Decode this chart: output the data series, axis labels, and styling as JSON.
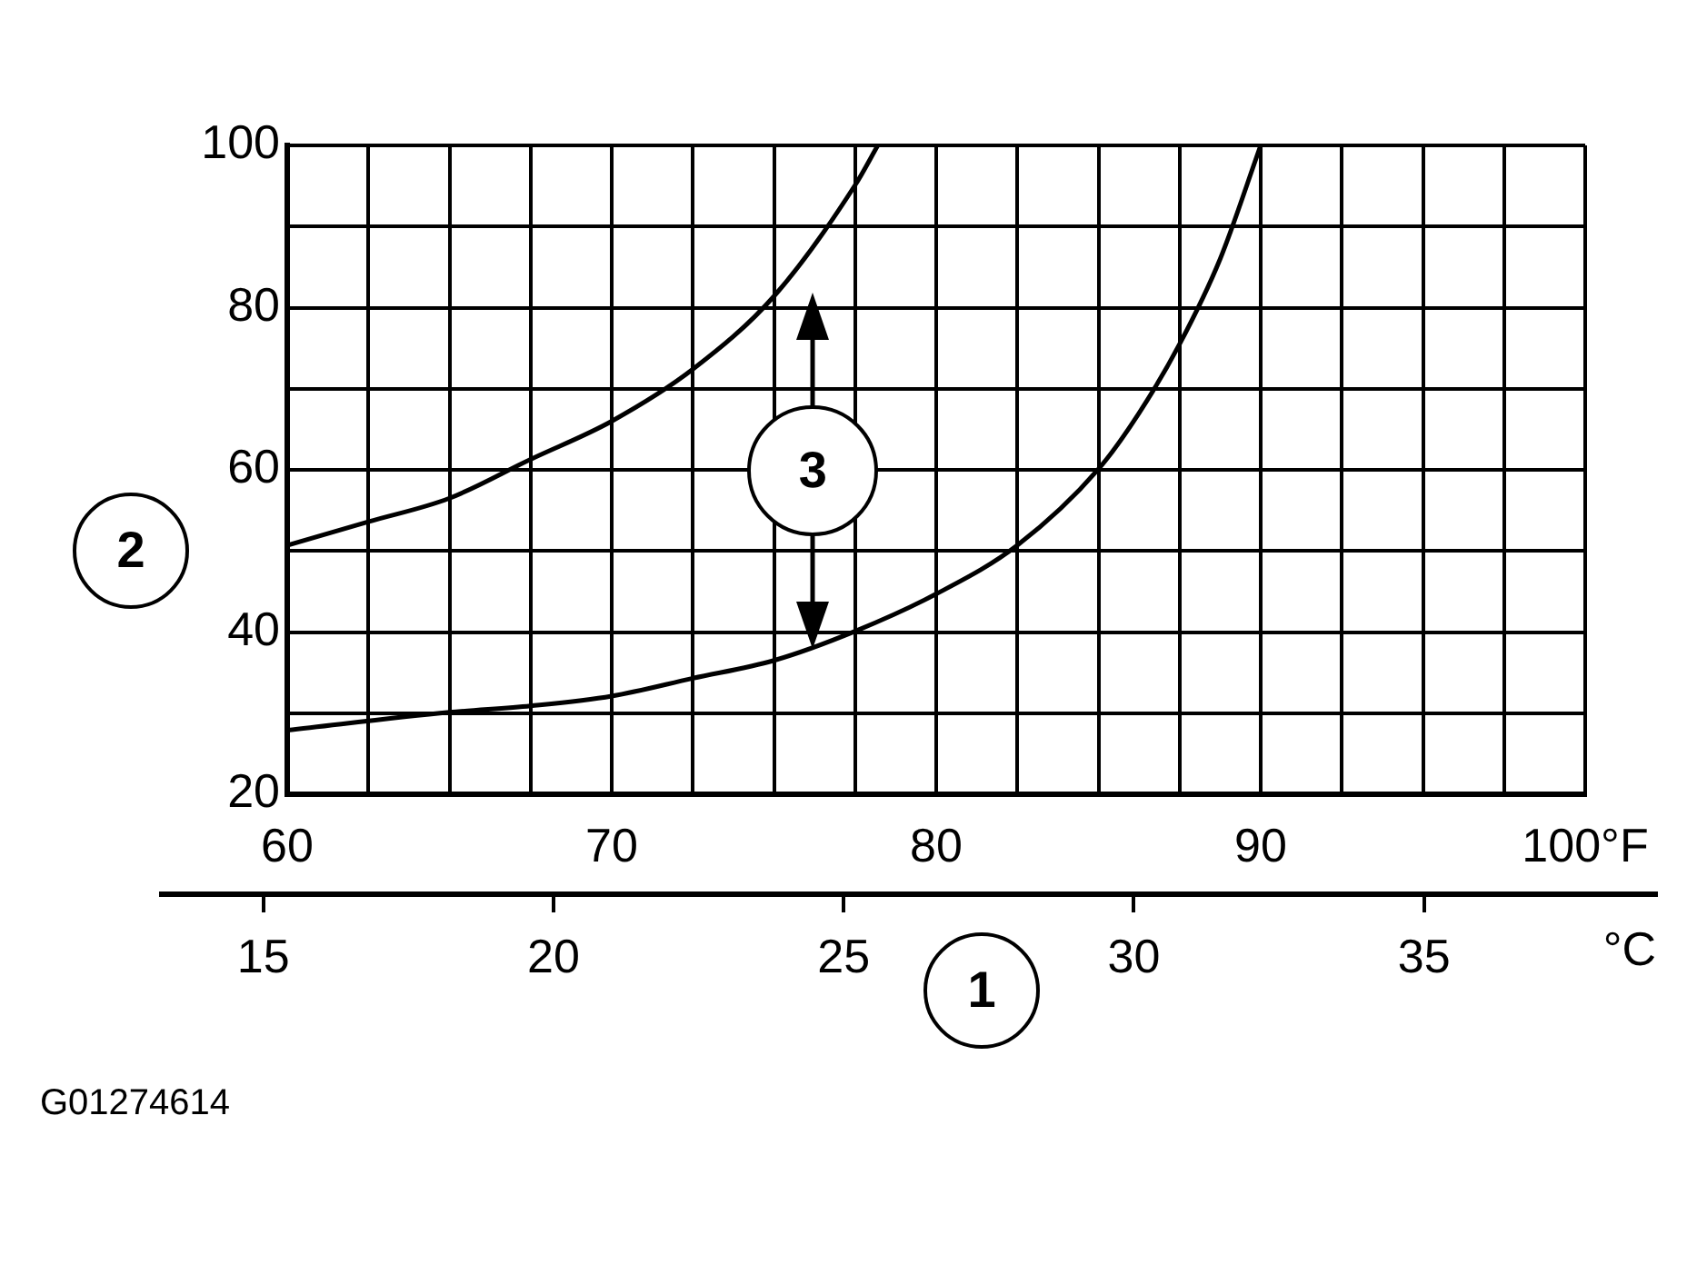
{
  "chart_data": {
    "type": "line",
    "xlabel": "1",
    "ylabel": "2",
    "x2label": "°C",
    "xlim": [
      60,
      100
    ],
    "xticks": [
      60,
      {
        "value": 62.5,
        "label": null
      },
      {
        "value": 65,
        "label": null
      },
      {
        "value": 67.5,
        "label": null
      },
      70,
      {
        "value": 72.5,
        "label": null
      },
      {
        "value": 75,
        "label": null
      },
      {
        "value": 77.5,
        "label": null
      },
      80,
      {
        "value": 82.5,
        "label": null
      },
      {
        "value": 85,
        "label": null
      },
      {
        "value": 87.5,
        "label": null
      },
      90,
      {
        "value": 92.5,
        "label": null
      },
      {
        "value": 95,
        "label": null
      },
      {
        "value": 97.5,
        "label": null
      },
      {
        "value": 100,
        "label": "100°F"
      }
    ],
    "ylim": [
      20,
      100
    ],
    "yticks": [
      20,
      {
        "value": 30,
        "label": null
      },
      40,
      {
        "value": 50,
        "label": null
      },
      60,
      {
        "value": 70,
        "label": null
      },
      80,
      {
        "value": 90,
        "label": null
      },
      100
    ],
    "x2lim": [
      13.25,
      39
    ],
    "x2ticks": [
      15,
      20,
      25,
      30,
      35
    ],
    "grid": true,
    "legend": false,
    "marker": "none",
    "line_style": "solid",
    "annotations": [
      "3",
      "G01274614"
    ],
    "series": [
      {
        "color": "#000000",
        "x": [
          60,
          62.5,
          65,
          67.5,
          70,
          72.5,
          75,
          77.5,
          78.2
        ],
        "values": [
          50.7,
          53.6,
          56.5,
          61.3,
          66.0,
          72.4,
          81.4,
          95.1,
          100
        ]
      },
      {
        "color": "#000000",
        "x": [
          60,
          65,
          67.5,
          70,
          72.5,
          75,
          77.5,
          80,
          82.5,
          85,
          86.25,
          87.5,
          88.75,
          90
        ],
        "values": [
          27.9,
          30.1,
          30.9,
          32.1,
          34.3,
          36.5,
          40.1,
          44.7,
          50.7,
          60.1,
          67,
          75.5,
          86,
          100
        ]
      }
    ]
  }
}
